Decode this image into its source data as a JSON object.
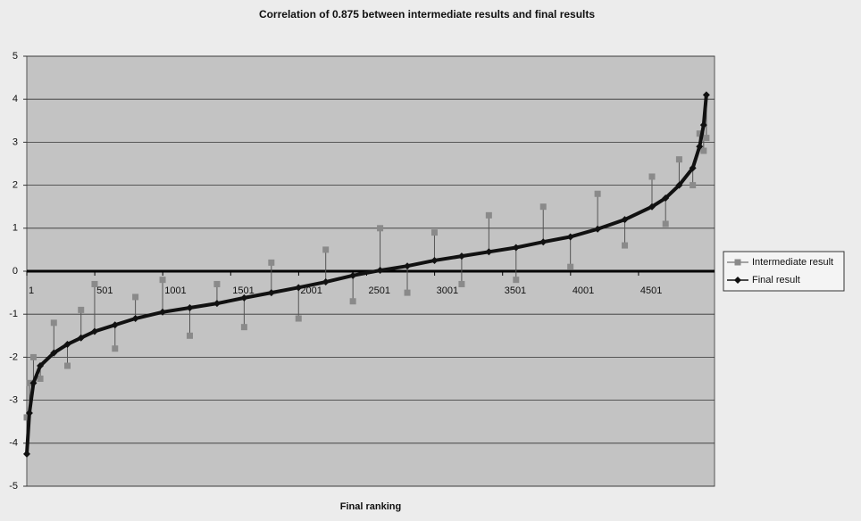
{
  "chart_data": {
    "type": "line",
    "title": "Correlation of 0.875 between intermediate results and final results",
    "x_label": "Final ranking",
    "x": [
      1,
      20,
      50,
      100,
      200,
      300,
      400,
      500,
      650,
      800,
      1000,
      1200,
      1400,
      1600,
      1800,
      2000,
      2200,
      2400,
      2600,
      2800,
      3000,
      3200,
      3400,
      3600,
      3800,
      4000,
      4200,
      4400,
      4600,
      4700,
      4800,
      4900,
      4950,
      4980,
      5000
    ],
    "series": [
      {
        "name": "Intermediate result",
        "color": "#8a8a8a",
        "marker": "square",
        "values": [
          -3.4,
          -2.6,
          -2.0,
          -2.5,
          -1.2,
          -2.2,
          -0.9,
          -0.3,
          -1.8,
          -0.6,
          -0.2,
          -1.5,
          -0.3,
          -1.3,
          0.2,
          -1.1,
          0.5,
          -0.7,
          1.0,
          -0.5,
          0.9,
          -0.3,
          1.3,
          -0.2,
          1.5,
          0.1,
          1.8,
          0.6,
          2.2,
          1.1,
          2.6,
          2.0,
          3.2,
          2.8,
          3.1
        ]
      },
      {
        "name": "Final result",
        "color": "#111111",
        "marker": "diamond",
        "values": [
          -4.25,
          -3.3,
          -2.6,
          -2.2,
          -1.9,
          -1.7,
          -1.55,
          -1.4,
          -1.25,
          -1.1,
          -0.95,
          -0.85,
          -0.75,
          -0.62,
          -0.5,
          -0.38,
          -0.25,
          -0.1,
          0.02,
          0.12,
          0.25,
          0.35,
          0.45,
          0.55,
          0.68,
          0.8,
          0.98,
          1.2,
          1.5,
          1.7,
          2.0,
          2.4,
          2.9,
          3.4,
          4.1
        ]
      }
    ],
    "xlim": [
      1,
      5060
    ],
    "xticks": [
      1,
      501,
      1001,
      1501,
      2001,
      2501,
      3001,
      3501,
      4001,
      4501
    ],
    "ylim": [
      -5,
      5
    ],
    "yticks": [
      -5,
      -4,
      -3,
      -2,
      -1,
      0,
      1,
      2,
      3,
      4,
      5
    ],
    "grid": true,
    "legend": "right"
  }
}
